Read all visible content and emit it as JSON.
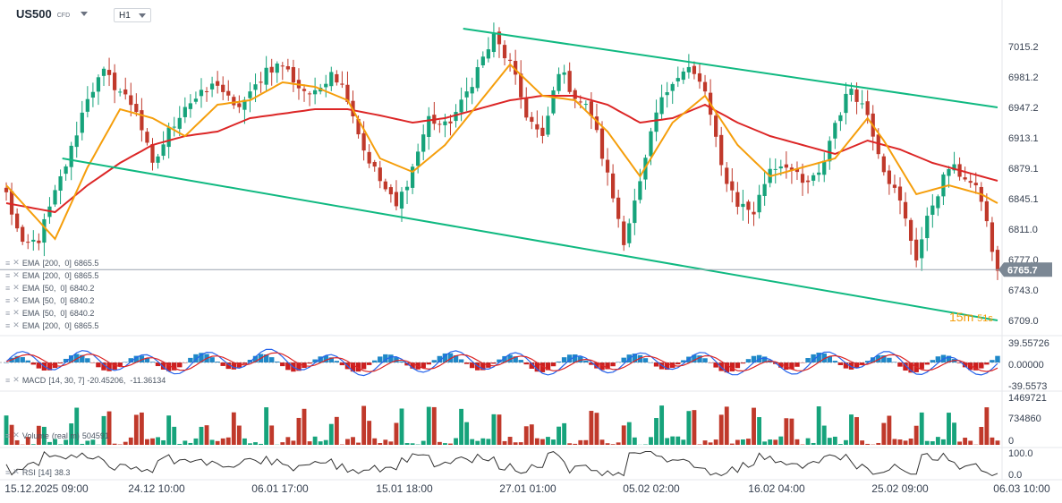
{
  "header": {
    "symbol": "US500",
    "type": "CFD",
    "timeframe": "H1"
  },
  "colors": {
    "channel": "#10b981",
    "ema_short": "#f59e0b",
    "ema_long": "#dc2626",
    "bull": "#16a37b",
    "bear": "#c0392b",
    "macd_line": "#2563eb",
    "signal_line": "#dc2626",
    "rsi": "#333333",
    "axis_text": "#374151",
    "price_tag": "#7b8794"
  },
  "legends": {
    "main": [
      {
        "label": "EMA",
        "params": "[200,  0]",
        "value": "6865.5"
      },
      {
        "label": "EMA",
        "params": "[200,  0]",
        "value": "6865.5"
      },
      {
        "label": "EMA",
        "params": "[50,  0]",
        "value": "6840.2"
      },
      {
        "label": "EMA",
        "params": "[50,  0]",
        "value": "6840.2"
      },
      {
        "label": "EMA",
        "params": "[50,  0]",
        "value": "6840.2"
      },
      {
        "label": "EMA",
        "params": "[200,  0]",
        "value": "6865.5"
      }
    ],
    "macd": {
      "label": "MACD",
      "params": "[14, 30, 7]",
      "value": "-20.45206,  -11.36134"
    },
    "volume": {
      "label": "Volume",
      "params": "(real m)",
      "value": "504591"
    },
    "rsi": {
      "label": "RSI",
      "params": "[14]",
      "value": "38.3"
    }
  },
  "timer": {
    "minutes": "15m",
    "seconds": "51s"
  },
  "chart_data": [
    {
      "type": "candlestick",
      "name": "US500 H1",
      "y_ticks": [
        "7015.2",
        "6981.2",
        "6947.2",
        "6913.1",
        "6879.1",
        "6845.1",
        "6811.0",
        "6777.0",
        "6743.0",
        "6709.0"
      ],
      "ylim": [
        6709.0,
        7015.2
      ],
      "current_price": "6765.7",
      "x_ticks": [
        "15.12.2025  09:00",
        "24.12  10:00",
        "06.01  17:00",
        "15.01  18:00",
        "27.01  01:00",
        "05.02  02:00",
        "16.02  04:00",
        "25.02  09:00",
        "06.03  10:00"
      ],
      "price_path": [
        [
          0,
          6850
        ],
        [
          3,
          6790
        ],
        [
          6,
          6800
        ],
        [
          9,
          6850
        ],
        [
          12,
          6900
        ],
        [
          15,
          6960
        ],
        [
          18,
          6985
        ],
        [
          21,
          6965
        ],
        [
          24,
          6945
        ],
        [
          27,
          6880
        ],
        [
          30,
          6920
        ],
        [
          33,
          6950
        ],
        [
          36,
          6960
        ],
        [
          39,
          6975
        ],
        [
          42,
          6945
        ],
        [
          45,
          6960
        ],
        [
          48,
          6990
        ],
        [
          51,
          6995
        ],
        [
          54,
          6970
        ],
        [
          57,
          6960
        ],
        [
          60,
          6990
        ],
        [
          63,
          6960
        ],
        [
          66,
          6900
        ],
        [
          69,
          6865
        ],
        [
          72,
          6835
        ],
        [
          75,
          6880
        ],
        [
          78,
          6935
        ],
        [
          81,
          6925
        ],
        [
          84,
          6950
        ],
        [
          87,
          6990
        ],
        [
          90,
          7025
        ],
        [
          93,
          6995
        ],
        [
          96,
          6940
        ],
        [
          99,
          6910
        ],
        [
          102,
          6990
        ],
        [
          105,
          6960
        ],
        [
          108,
          6940
        ],
        [
          111,
          6870
        ],
        [
          114,
          6800
        ],
        [
          117,
          6860
        ],
        [
          120,
          6940
        ],
        [
          123,
          6980
        ],
        [
          126,
          6990
        ],
        [
          129,
          6965
        ],
        [
          132,
          6880
        ],
        [
          135,
          6840
        ],
        [
          138,
          6830
        ],
        [
          141,
          6880
        ],
        [
          144,
          6885
        ],
        [
          147,
          6860
        ],
        [
          150,
          6870
        ],
        [
          153,
          6930
        ],
        [
          156,
          6970
        ],
        [
          159,
          6940
        ],
        [
          162,
          6880
        ],
        [
          165,
          6840
        ],
        [
          168,
          6780
        ],
        [
          171,
          6840
        ],
        [
          174,
          6880
        ],
        [
          177,
          6870
        ],
        [
          180,
          6845
        ],
        [
          183,
          6760
        ]
      ],
      "ema_50": [
        [
          0,
          6860
        ],
        [
          9,
          6800
        ],
        [
          15,
          6880
        ],
        [
          21,
          6945
        ],
        [
          27,
          6935
        ],
        [
          33,
          6915
        ],
        [
          39,
          6950
        ],
        [
          45,
          6955
        ],
        [
          51,
          6975
        ],
        [
          57,
          6970
        ],
        [
          63,
          6955
        ],
        [
          69,
          6890
        ],
        [
          75,
          6875
        ],
        [
          81,
          6905
        ],
        [
          87,
          6950
        ],
        [
          93,
          6995
        ],
        [
          99,
          6960
        ],
        [
          105,
          6955
        ],
        [
          111,
          6920
        ],
        [
          117,
          6870
        ],
        [
          123,
          6930
        ],
        [
          129,
          6960
        ],
        [
          135,
          6905
        ],
        [
          141,
          6870
        ],
        [
          147,
          6880
        ],
        [
          153,
          6890
        ],
        [
          159,
          6935
        ],
        [
          162,
          6910
        ],
        [
          168,
          6850
        ],
        [
          174,
          6860
        ],
        [
          180,
          6850
        ],
        [
          183,
          6840
        ]
      ],
      "ema_200": [
        [
          0,
          6840
        ],
        [
          9,
          6830
        ],
        [
          15,
          6860
        ],
        [
          21,
          6885
        ],
        [
          27,
          6905
        ],
        [
          33,
          6915
        ],
        [
          39,
          6920
        ],
        [
          45,
          6935
        ],
        [
          51,
          6940
        ],
        [
          57,
          6945
        ],
        [
          63,
          6945
        ],
        [
          69,
          6938
        ],
        [
          75,
          6930
        ],
        [
          81,
          6935
        ],
        [
          87,
          6945
        ],
        [
          93,
          6955
        ],
        [
          99,
          6960
        ],
        [
          105,
          6960
        ],
        [
          111,
          6950
        ],
        [
          117,
          6930
        ],
        [
          123,
          6935
        ],
        [
          129,
          6950
        ],
        [
          135,
          6930
        ],
        [
          141,
          6915
        ],
        [
          147,
          6905
        ],
        [
          153,
          6895
        ],
        [
          159,
          6910
        ],
        [
          165,
          6900
        ],
        [
          171,
          6885
        ],
        [
          177,
          6875
        ],
        [
          183,
          6865
        ]
      ],
      "channel": {
        "upper": [
          [
            86,
            7035
          ],
          [
            183,
            6947
          ]
        ],
        "lower": [
          [
            12,
            6890
          ],
          [
            183,
            6709
          ]
        ]
      }
    },
    {
      "type": "line",
      "name": "MACD",
      "y_ticks": [
        "39.55726",
        "0.00000",
        "-39.5573"
      ],
      "ylim": [
        -39.5573,
        39.55726
      ]
    },
    {
      "type": "bar",
      "name": "Volume",
      "y_ticks": [
        "1469721",
        "734860",
        "0"
      ],
      "ylim": [
        0,
        1469721
      ]
    },
    {
      "type": "line",
      "name": "RSI",
      "y_ticks": [
        "100.0",
        "0.0"
      ],
      "ylim": [
        0,
        100
      ]
    }
  ]
}
